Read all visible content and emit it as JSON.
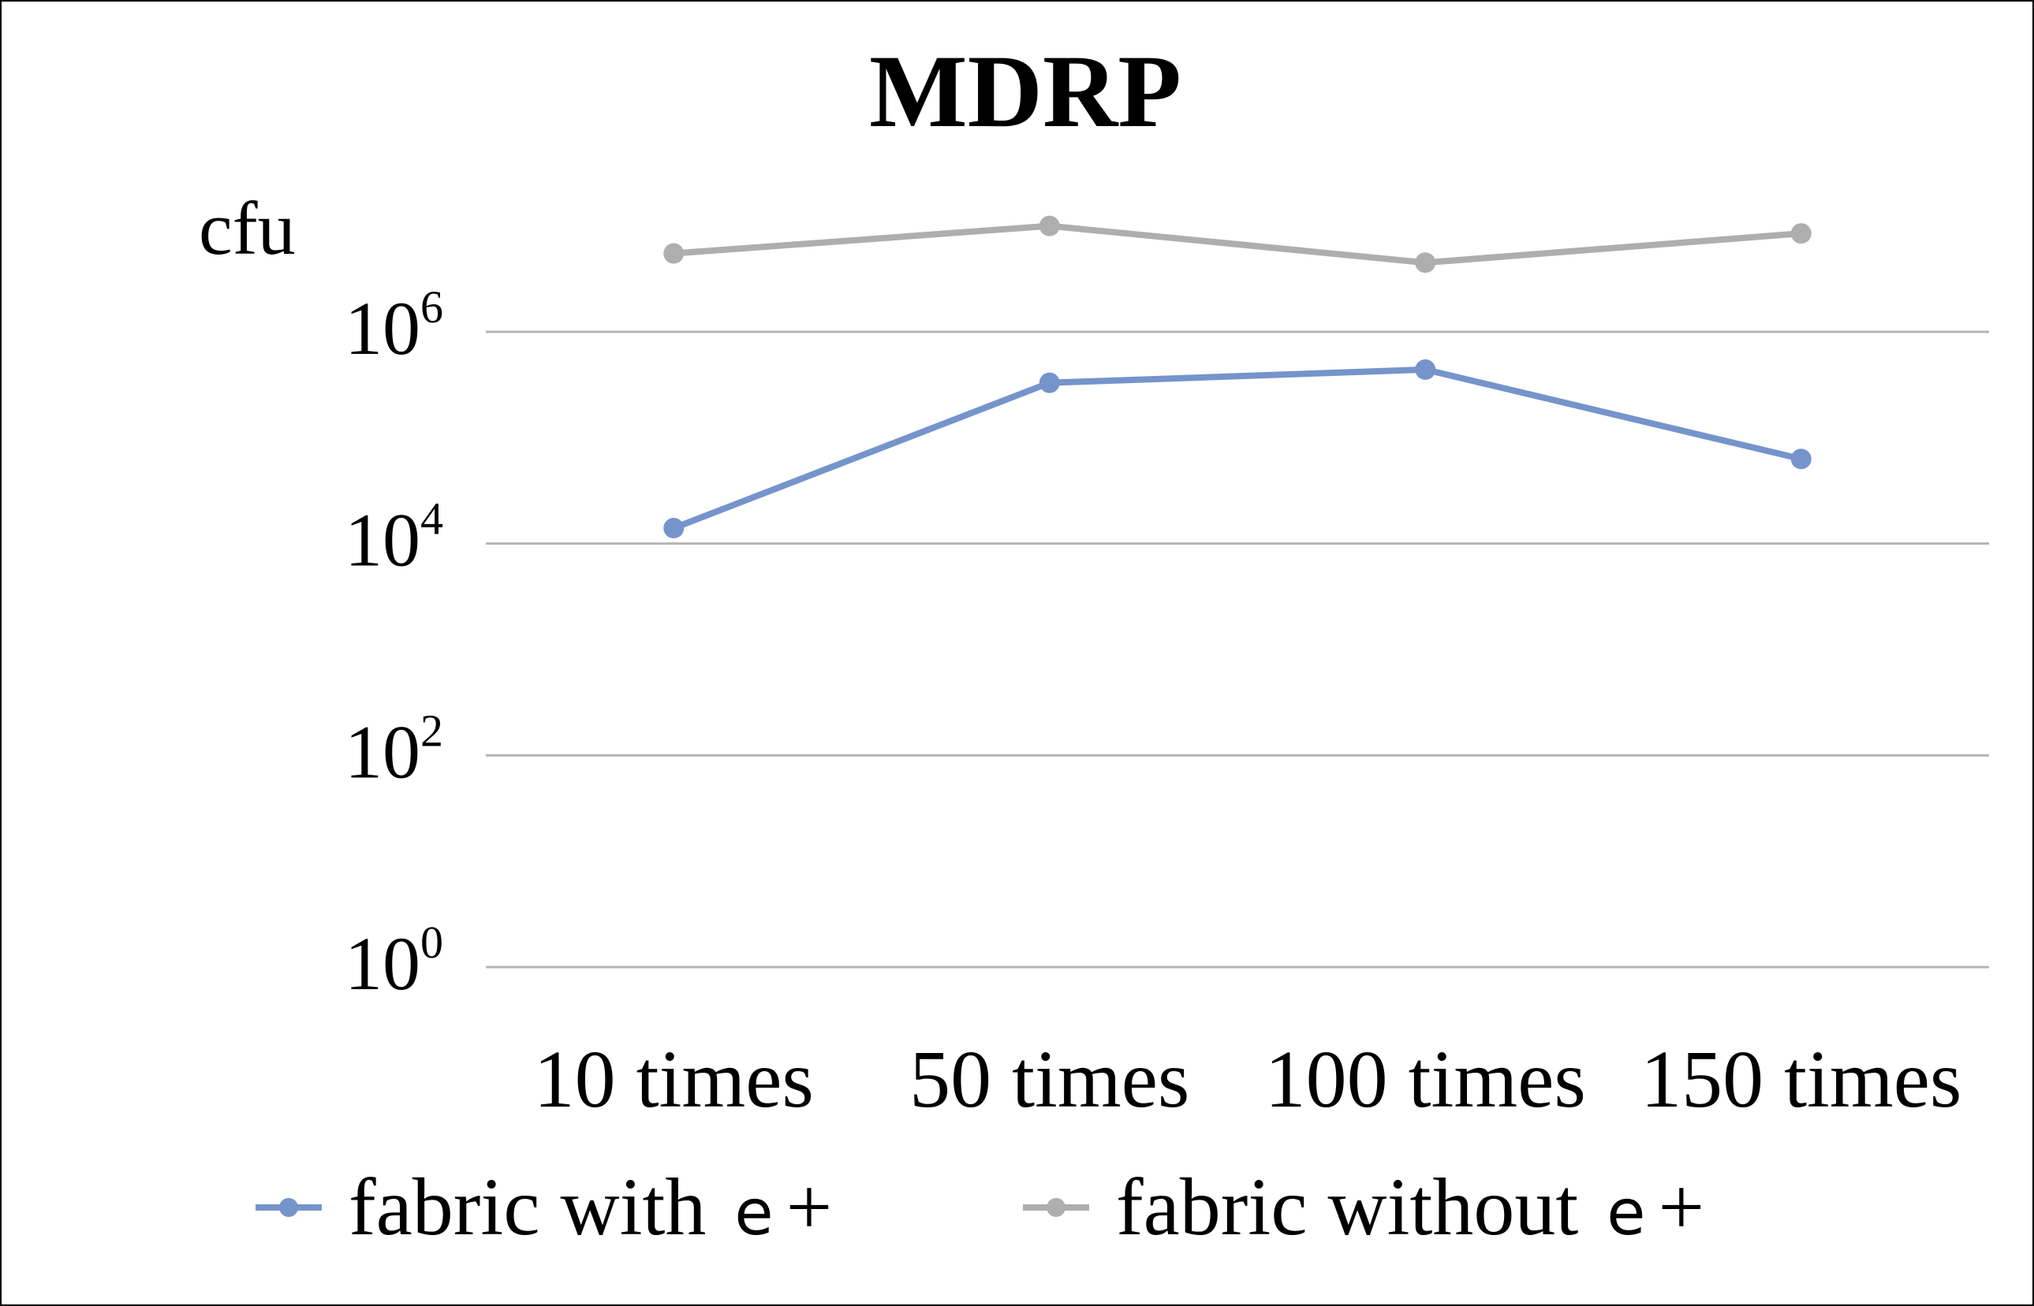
{
  "chart_data": {
    "type": "line",
    "title": "MDRP",
    "ylabel": "cfu",
    "xlabel": "",
    "yscale": "log10",
    "ylim": [
      1,
      1000000
    ],
    "grid": true,
    "legend_position": "bottom",
    "categories": [
      "10 times",
      "50 times",
      "100 times",
      "150 times"
    ],
    "y_ticks": [
      {
        "base": "10",
        "exp": "0",
        "value": 1
      },
      {
        "base": "10",
        "exp": "2",
        "value": 100
      },
      {
        "base": "10",
        "exp": "4",
        "value": 10000
      },
      {
        "base": "10",
        "exp": "6",
        "value": 1000000
      }
    ],
    "series": [
      {
        "name_text": "fabric with",
        "name_symbol": "e",
        "name_sign": "+",
        "color": "#7594CB",
        "values": [
          14000,
          330000,
          440000,
          63000
        ]
      },
      {
        "name_text": "fabric without",
        "name_symbol": "e",
        "name_sign": "+",
        "color": "#AEAEAE",
        "values": [
          5500000,
          10000000,
          4500000,
          8500000
        ]
      }
    ]
  },
  "colors": {
    "gridline": "#B4B4B4",
    "frame": "#000000",
    "background": "#FFFFFF"
  }
}
